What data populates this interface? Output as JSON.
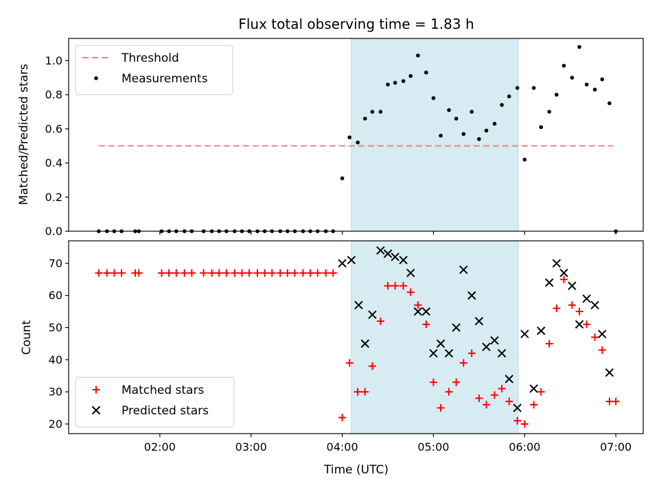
{
  "chart_data": [
    {
      "type": "scatter",
      "title": "Flux total observing time = 1.83 h",
      "xlabel": "",
      "ylabel": "Matched/Predicted stars",
      "xlim": [
        1.0,
        7.3
      ],
      "ylim": [
        0.0,
        1.13
      ],
      "yticks": [
        0.0,
        0.2,
        0.4,
        0.6,
        0.8,
        1.0
      ],
      "ytick_labels": [
        "0.0",
        "0.2",
        "0.4",
        "0.6",
        "0.8",
        "1.0"
      ],
      "shaded_x": [
        4.1,
        5.93
      ],
      "legend": "top-left",
      "series": [
        {
          "name": "Threshold",
          "kind": "dashed-line",
          "color": "#f08080",
          "x": [
            1.33,
            6.97
          ],
          "y": [
            0.5,
            0.5
          ]
        },
        {
          "name": "Measurements",
          "kind": "dots",
          "color": "#000000",
          "x": [
            1.33,
            1.42,
            1.5,
            1.58,
            1.73,
            1.77,
            2.02,
            2.1,
            2.18,
            2.27,
            2.35,
            2.48,
            2.57,
            2.65,
            2.73,
            2.82,
            2.9,
            2.98,
            3.07,
            3.15,
            3.23,
            3.32,
            3.4,
            3.48,
            3.57,
            3.65,
            3.73,
            3.82,
            3.9,
            4.0,
            4.08,
            4.17,
            4.25,
            4.33,
            4.42,
            4.5,
            4.58,
            4.67,
            4.75,
            4.83,
            4.92,
            5.0,
            5.08,
            5.17,
            5.25,
            5.33,
            5.42,
            5.5,
            5.58,
            5.67,
            5.75,
            5.83,
            5.92,
            6.0,
            6.1,
            6.18,
            6.27,
            6.35,
            6.43,
            6.52,
            6.6,
            6.68,
            6.77,
            6.85,
            6.93,
            7.0
          ],
          "y": [
            0,
            0,
            0,
            0,
            0,
            0,
            0,
            0,
            0,
            0,
            0,
            0,
            0,
            0,
            0,
            0,
            0,
            0,
            0,
            0,
            0,
            0,
            0,
            0,
            0,
            0,
            0,
            0,
            0,
            0.31,
            0.55,
            0.52,
            0.66,
            0.7,
            0.7,
            0.86,
            0.87,
            0.88,
            0.91,
            1.03,
            0.93,
            0.78,
            0.56,
            0.71,
            0.66,
            0.57,
            0.7,
            0.54,
            0.59,
            0.63,
            0.74,
            0.79,
            0.84,
            0.42,
            0.84,
            0.61,
            0.7,
            0.8,
            0.97,
            0.9,
            1.08,
            0.86,
            0.83,
            0.89,
            0.75,
            0.0
          ]
        }
      ]
    },
    {
      "type": "scatter",
      "title": "",
      "xlabel": "Time (UTC)",
      "ylabel": "Count",
      "xlim": [
        1.0,
        7.3
      ],
      "ylim": [
        17,
        77
      ],
      "xticks": [
        2,
        3,
        4,
        5,
        6,
        7
      ],
      "xtick_labels": [
        "02:00",
        "03:00",
        "04:00",
        "05:00",
        "06:00",
        "07:00"
      ],
      "yticks": [
        20,
        30,
        40,
        50,
        60,
        70
      ],
      "ytick_labels": [
        "20",
        "30",
        "40",
        "50",
        "60",
        "70"
      ],
      "shaded_x": [
        4.1,
        5.93
      ],
      "legend": "bottom-left",
      "series": [
        {
          "name": "Matched stars",
          "kind": "plus",
          "color": "#ff0000",
          "x": [
            1.33,
            1.42,
            1.5,
            1.58,
            1.73,
            1.77,
            2.02,
            2.1,
            2.18,
            2.27,
            2.35,
            2.48,
            2.57,
            2.65,
            2.73,
            2.82,
            2.9,
            2.98,
            3.07,
            3.15,
            3.23,
            3.32,
            3.4,
            3.48,
            3.57,
            3.65,
            3.73,
            3.82,
            3.9,
            4.0,
            4.08,
            4.17,
            4.25,
            4.33,
            4.42,
            4.5,
            4.58,
            4.67,
            4.75,
            4.83,
            4.92,
            5.0,
            5.08,
            5.17,
            5.25,
            5.33,
            5.42,
            5.5,
            5.58,
            5.67,
            5.75,
            5.83,
            5.92,
            6.0,
            6.1,
            6.18,
            6.27,
            6.35,
            6.43,
            6.52,
            6.6,
            6.68,
            6.77,
            6.85,
            6.93,
            7.0
          ],
          "y": [
            67,
            67,
            67,
            67,
            67,
            67,
            67,
            67,
            67,
            67,
            67,
            67,
            67,
            67,
            67,
            67,
            67,
            67,
            67,
            67,
            67,
            67,
            67,
            67,
            67,
            67,
            67,
            67,
            67,
            22,
            39,
            30,
            30,
            38,
            52,
            63,
            63,
            63,
            61,
            57,
            51,
            33,
            25,
            30,
            33,
            39,
            42,
            28,
            26,
            29,
            31,
            27,
            21,
            20,
            26,
            30,
            45,
            56,
            65,
            57,
            55,
            51,
            47,
            43,
            27,
            27
          ]
        },
        {
          "name": "Predicted stars",
          "kind": "x",
          "color": "#000000",
          "x": [
            4.0,
            4.1,
            4.18,
            4.25,
            4.33,
            4.42,
            4.5,
            4.58,
            4.67,
            4.75,
            4.83,
            4.92,
            5.0,
            5.08,
            5.17,
            5.25,
            5.33,
            5.42,
            5.5,
            5.58,
            5.67,
            5.75,
            5.83,
            5.92,
            6.0,
            6.1,
            6.18,
            6.27,
            6.35,
            6.43,
            6.52,
            6.6,
            6.68,
            6.77,
            6.85,
            6.93
          ],
          "y": [
            70,
            71,
            57,
            45,
            54,
            74,
            73,
            72,
            71,
            67,
            55,
            55,
            42,
            45,
            42,
            50,
            68,
            60,
            52,
            44,
            46,
            42,
            34,
            25,
            48,
            31,
            49,
            64,
            70,
            67,
            63,
            51,
            59,
            57,
            48,
            36
          ]
        }
      ]
    }
  ]
}
